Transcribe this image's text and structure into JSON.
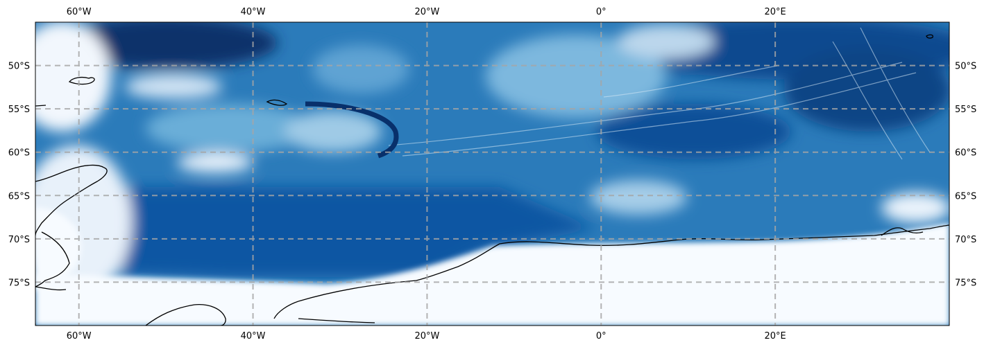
{
  "map": {
    "projection": "PlateCarree",
    "extent": {
      "lon_min": -65,
      "lon_max": 40,
      "lat_min": -80,
      "lat_max": -45
    },
    "colormap": "Blues",
    "colors": {
      "ocean_deep": "#08306b",
      "ocean_mid": "#2171b5",
      "ocean_light": "#6baed6",
      "shelf": "#deebf7",
      "land_ice": "#f7fbff",
      "coastline": "#000000",
      "gridline": "#a6a6a6"
    },
    "gridlines": {
      "style": "dashed",
      "lon_step": 20,
      "lat_step": 5
    },
    "lon_ticks": [
      {
        "value": -60,
        "label": "60°W"
      },
      {
        "value": -40,
        "label": "40°W"
      },
      {
        "value": -20,
        "label": "20°W"
      },
      {
        "value": 0,
        "label": "0°"
      },
      {
        "value": 20,
        "label": "20°E"
      }
    ],
    "lat_ticks": [
      {
        "value": -50,
        "label": "50°S"
      },
      {
        "value": -55,
        "label": "55°S"
      },
      {
        "value": -60,
        "label": "60°S"
      },
      {
        "value": -65,
        "label": "65°S"
      },
      {
        "value": -70,
        "label": "70°S"
      },
      {
        "value": -75,
        "label": "75°S"
      }
    ]
  }
}
